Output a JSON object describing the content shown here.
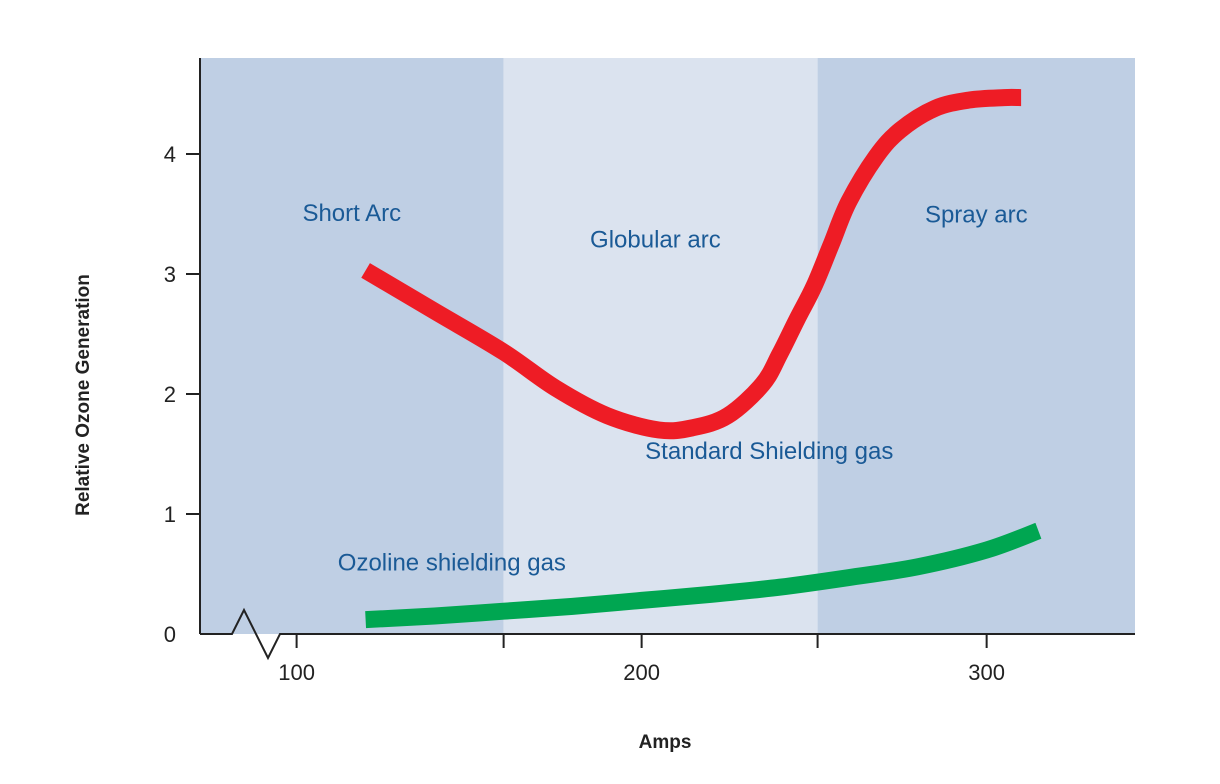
{
  "chart_data": {
    "type": "line",
    "title": "",
    "xlabel": "Amps",
    "ylabel": "Relative Ozone Generation",
    "xlim": [
      72,
      343
    ],
    "ylim": [
      0,
      4.8
    ],
    "xticks": [
      100,
      200,
      300
    ],
    "yticks": [
      0,
      1,
      2,
      3,
      4
    ],
    "grid": false,
    "regions": [
      {
        "label": "Short Arc",
        "x_start": 72,
        "x_end": 160,
        "color": "#bfcfe4",
        "label_x": 116,
        "label_y": 3.44
      },
      {
        "label": "Globular arc",
        "x_start": 160,
        "x_end": 251,
        "color": "#dbe3ef",
        "label_x": 204,
        "label_y": 3.22
      },
      {
        "label": "Spray arc",
        "x_start": 251,
        "x_end": 343,
        "color": "#bfcfe4",
        "label_x": 297,
        "label_y": 3.43
      }
    ],
    "series": [
      {
        "name": "Standard Shielding gas",
        "color": "#ee1c25",
        "label_x": 237,
        "label_y": 1.46,
        "x": [
          120,
          140,
          160,
          175,
          190,
          205,
          215,
          225,
          235,
          240,
          245,
          250,
          255,
          260,
          268,
          275,
          285,
          295,
          305,
          310
        ],
        "y": [
          3.03,
          2.69,
          2.35,
          2.05,
          1.82,
          1.7,
          1.72,
          1.82,
          2.08,
          2.33,
          2.62,
          2.9,
          3.25,
          3.6,
          3.98,
          4.2,
          4.38,
          4.45,
          4.47,
          4.47
        ]
      },
      {
        "name": "Ozoline shielding gas",
        "color": "#00a651",
        "label_x": 145,
        "label_y": 0.53,
        "x": [
          120,
          140,
          160,
          180,
          200,
          220,
          240,
          260,
          280,
          300,
          315
        ],
        "y": [
          0.12,
          0.15,
          0.19,
          0.23,
          0.28,
          0.33,
          0.39,
          0.47,
          0.56,
          0.7,
          0.86
        ]
      }
    ],
    "axis_break": true,
    "colors": {
      "label_text": "#1a5a96",
      "axis": "#222222"
    }
  }
}
